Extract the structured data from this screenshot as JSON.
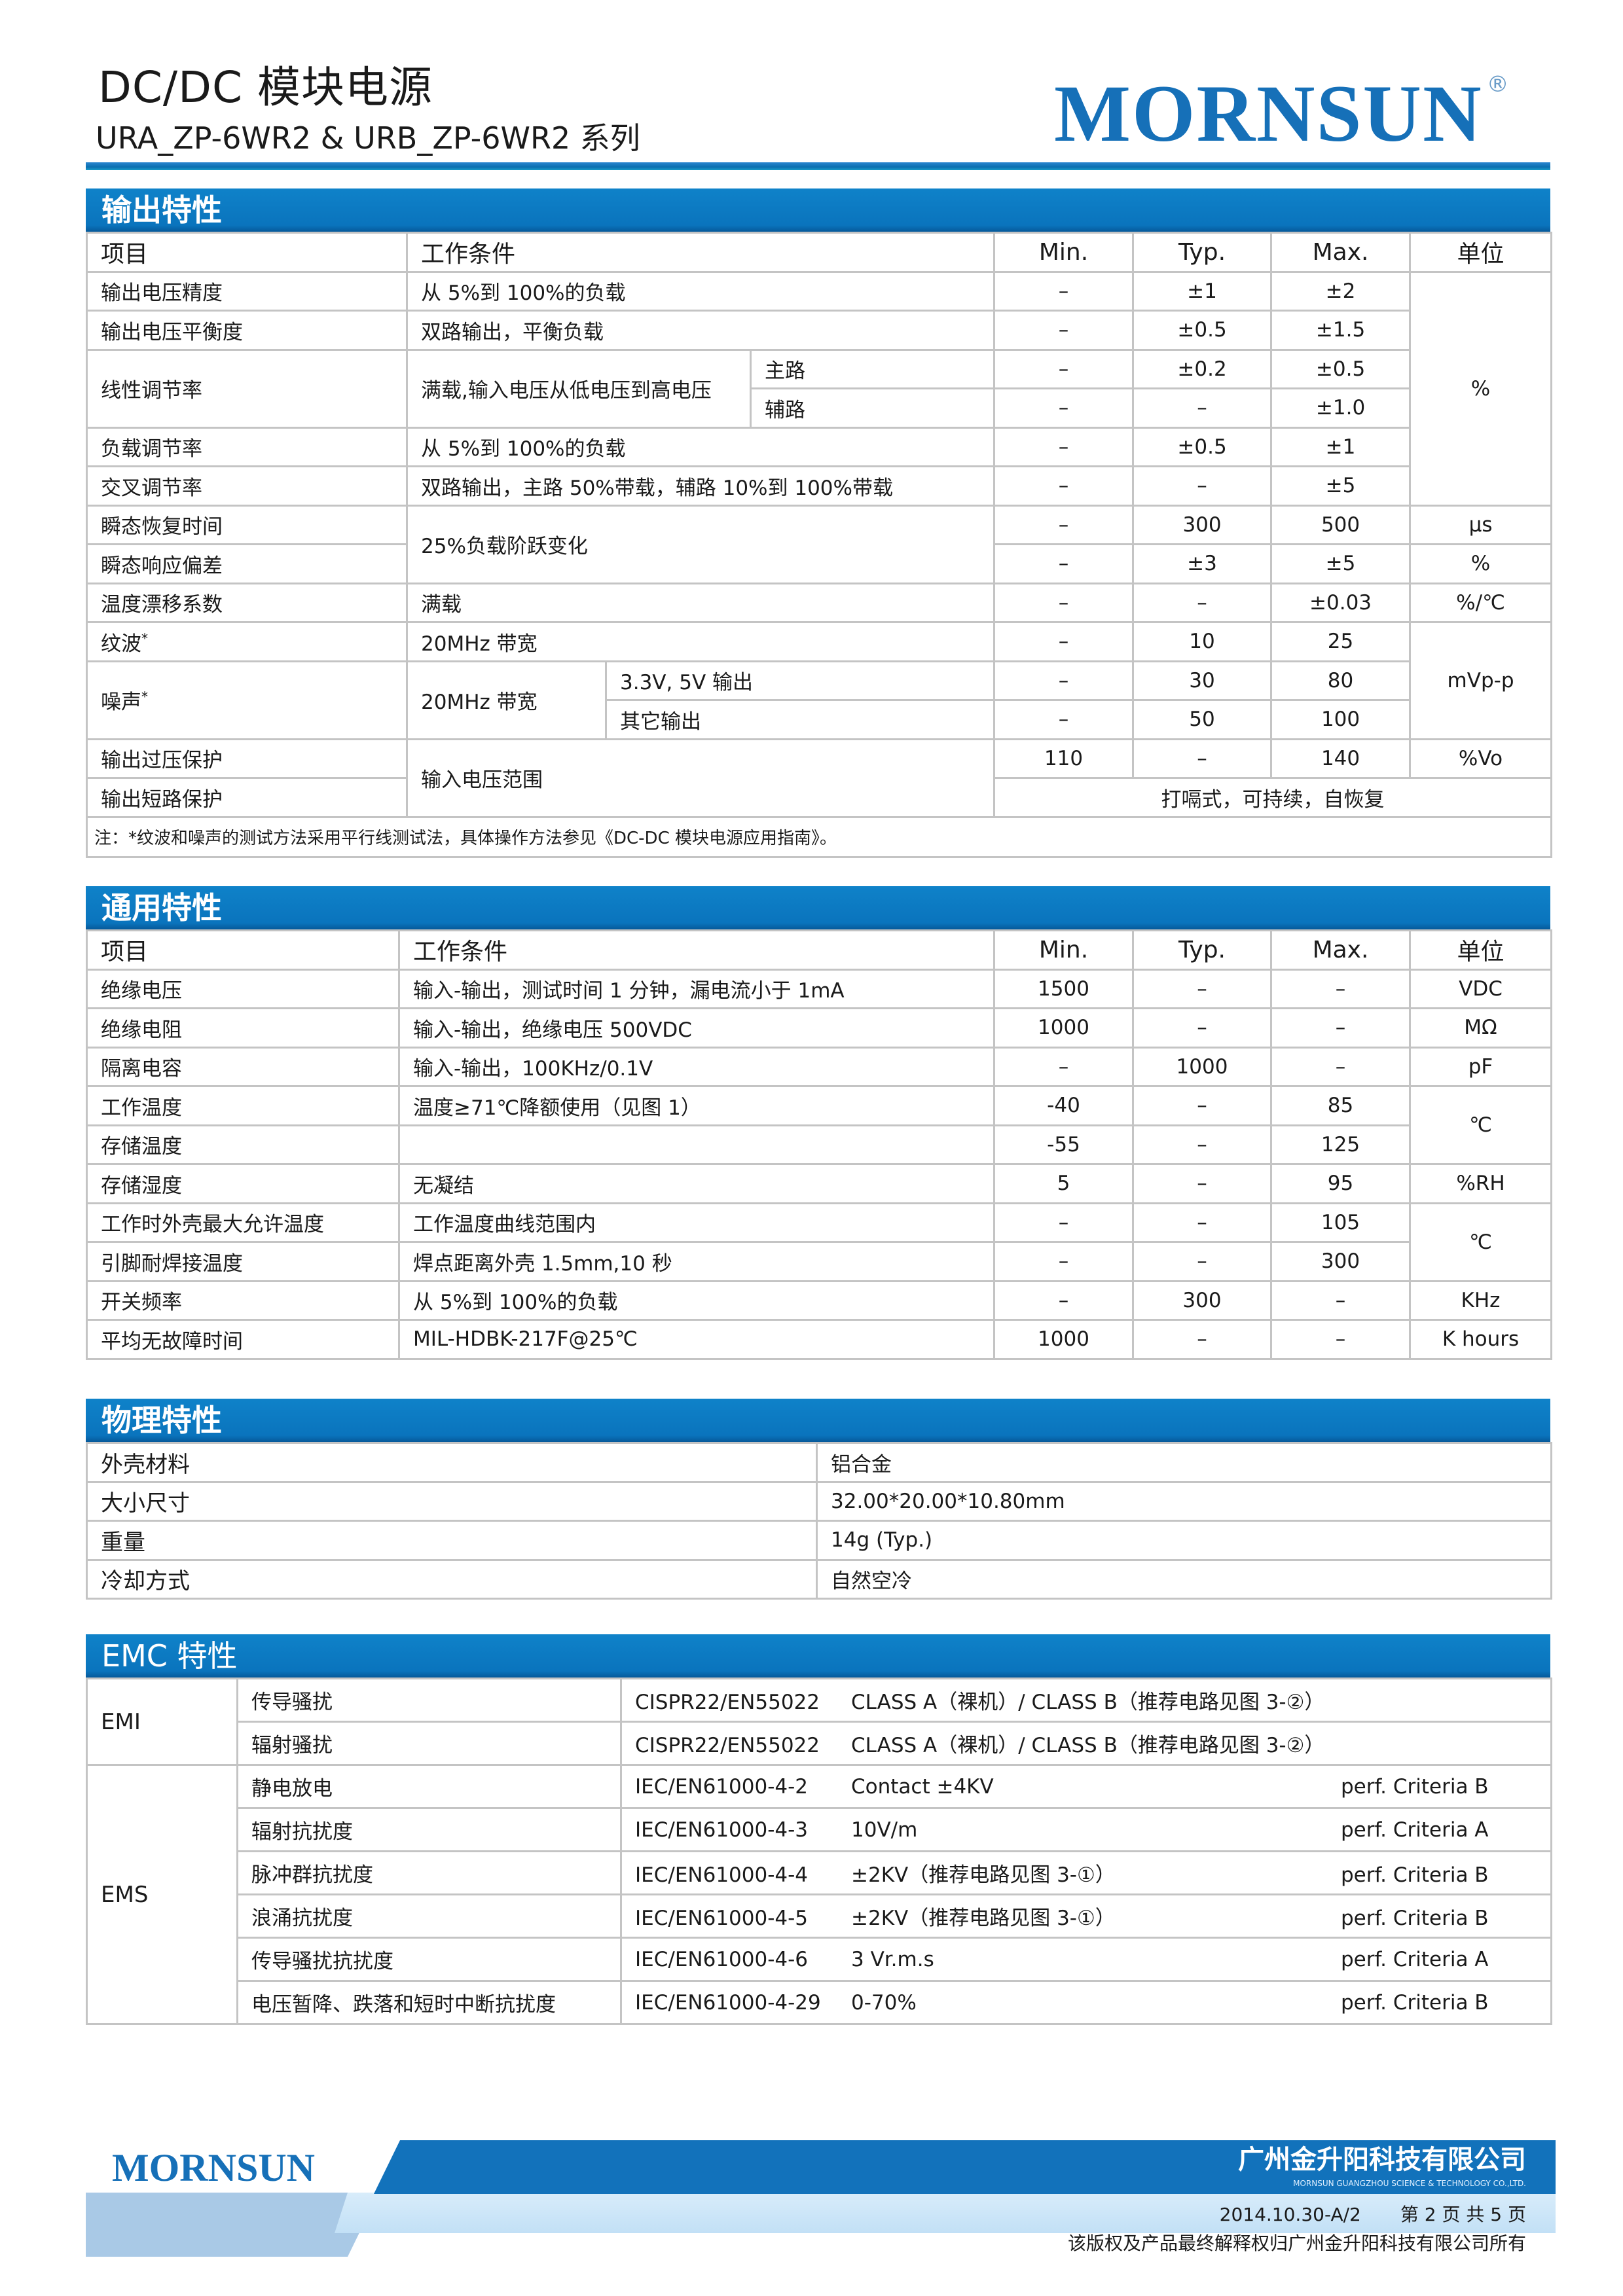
{
  "header": {
    "title": "DC/DC 模块电源",
    "subtitle": "URA_ZP-6WR2 & URB_ZP-6WR2  系列",
    "logo": "MORNSUN",
    "logo_mark": "®"
  },
  "colors": {
    "accent": "#0a74bd",
    "logo": "#1670b8"
  },
  "output": {
    "title": "输出特性",
    "headers": [
      "项目",
      "工作条件",
      "Min.",
      "Typ.",
      "Max.",
      "单位"
    ],
    "note_mark": "*",
    "rows": [
      [
        "输出电压精度",
        "从 5%到 100%的负载",
        "–",
        "±1",
        "±2",
        "%"
      ],
      [
        "输出电压平衡度",
        "双路输出，平衡负载",
        "–",
        "±0.5",
        "±1.5"
      ],
      [
        "线性调节率",
        "满载,输入电压从低电压到高电压",
        "主路",
        "–",
        "±0.2",
        "±0.5"
      ],
      [
        "辅路",
        "–",
        "–",
        "±1.0"
      ],
      [
        "负载调节率",
        "从 5%到 100%的负载",
        "–",
        "±0.5",
        "±1"
      ],
      [
        "交叉调节率",
        "双路输出，主路 50%带载，辅路 10%到 100%带载",
        "–",
        "–",
        "±5"
      ],
      [
        "瞬态恢复时间",
        "25%负载阶跃变化",
        "–",
        "300",
        "500",
        "µs"
      ],
      [
        "瞬态响应偏差",
        "–",
        "±3",
        "±5",
        "%"
      ],
      [
        "温度漂移系数",
        "满载",
        "–",
        "–",
        "±0.03",
        "%/℃"
      ],
      [
        "纹波",
        "20MHz  带宽",
        "–",
        "10",
        "25",
        "mVp-p"
      ],
      [
        "噪声",
        "20MHz  带宽",
        "3.3V, 5V 输出",
        "–",
        "30",
        "80"
      ],
      [
        "其它输出",
        "–",
        "50",
        "100"
      ],
      [
        "输出过压保护",
        "输入电压范围",
        "110",
        "–",
        "140",
        "%Vo"
      ],
      [
        "输出短路保护",
        "打嗝式，可持续，自恢复"
      ]
    ],
    "note": "注：*纹波和噪声的测试方法采用平行线测试法，具体操作方法参见《DC-DC 模块电源应用指南》。"
  },
  "general": {
    "title": "通用特性",
    "headers": [
      "项目",
      "工作条件",
      "Min.",
      "Typ.",
      "Max.",
      "单位"
    ],
    "rows": [
      [
        "绝缘电压",
        "输入-输出，测试时间 1 分钟，漏电流小于 1mA",
        "1500",
        "–",
        "–",
        "VDC"
      ],
      [
        "绝缘电阻",
        "输入-输出，绝缘电压 500VDC",
        "1000",
        "–",
        "–",
        "MΩ"
      ],
      [
        "隔离电容",
        "输入-输出，100KHz/0.1V",
        "–",
        "1000",
        "–",
        "pF"
      ],
      [
        "工作温度",
        "温度≥71℃降额使用（见图 1）",
        "-40",
        "–",
        "85",
        "℃"
      ],
      [
        "存储温度",
        "",
        "-55",
        "–",
        "125"
      ],
      [
        "存储湿度",
        "无凝结",
        "5",
        "–",
        "95",
        "%RH"
      ],
      [
        "工作时外壳最大允许温度",
        "工作温度曲线范围内",
        "–",
        "–",
        "105",
        "℃"
      ],
      [
        "引脚耐焊接温度",
        "焊点距离外壳 1.5mm,10 秒",
        "–",
        "–",
        "300"
      ],
      [
        "开关频率",
        "从 5%到 100%的负载",
        "–",
        "300",
        "–",
        "KHz"
      ],
      [
        "平均无故障时间",
        "MIL-HDBK-217F@25℃",
        "1000",
        "–",
        "–",
        "K hours"
      ]
    ]
  },
  "physical": {
    "title": "物理特性",
    "rows": [
      [
        "外壳材料",
        "铝合金"
      ],
      [
        "大小尺寸",
        "32.00*20.00*10.80mm"
      ],
      [
        "重量",
        "14g (Typ.)"
      ],
      [
        "冷却方式",
        "自然空冷"
      ]
    ]
  },
  "emc": {
    "title": "EMC 特性",
    "emi_label": "EMI",
    "ems_label": "EMS",
    "rows": [
      [
        "传导骚扰",
        "CISPR22/EN55022",
        "CLASS A（裸机）/ CLASS B（推荐电路见图 3-②）",
        ""
      ],
      [
        "辐射骚扰",
        "CISPR22/EN55022",
        "CLASS A（裸机）/ CLASS B（推荐电路见图 3-②）",
        ""
      ],
      [
        "静电放电",
        "IEC/EN61000-4-2",
        "Contact ±4KV",
        "perf. Criteria B"
      ],
      [
        "辐射抗扰度",
        "IEC/EN61000-4-3",
        "10V/m",
        "perf. Criteria A"
      ],
      [
        "脉冲群抗扰度",
        "IEC/EN61000-4-4",
        "±2KV（推荐电路见图 3-①）",
        "perf. Criteria B"
      ],
      [
        "浪涌抗扰度",
        "IEC/EN61000-4-5",
        "±2KV（推荐电路见图 3-①）",
        "perf. Criteria B"
      ],
      [
        "传导骚扰抗扰度",
        "IEC/EN61000-4-6",
        "3 Vr.m.s",
        "perf. Criteria A"
      ],
      [
        "电压暂降、跌落和短时中断抗扰度",
        "IEC/EN61000-4-29",
        "0-70%",
        "perf. Criteria B"
      ]
    ]
  },
  "footer": {
    "logo": "MORNSUN",
    "company": "广州金升阳科技有限公司",
    "company_en": "MORNSUN GUANGZHOU SCIENCE & TECHNOLOGY CO.,LTD.",
    "version": "2014.10.30-A/2",
    "page": "第 2 页 共 5 页",
    "copyright": "该版权及产品最终解释权归广州金升阳科技有限公司所有"
  }
}
